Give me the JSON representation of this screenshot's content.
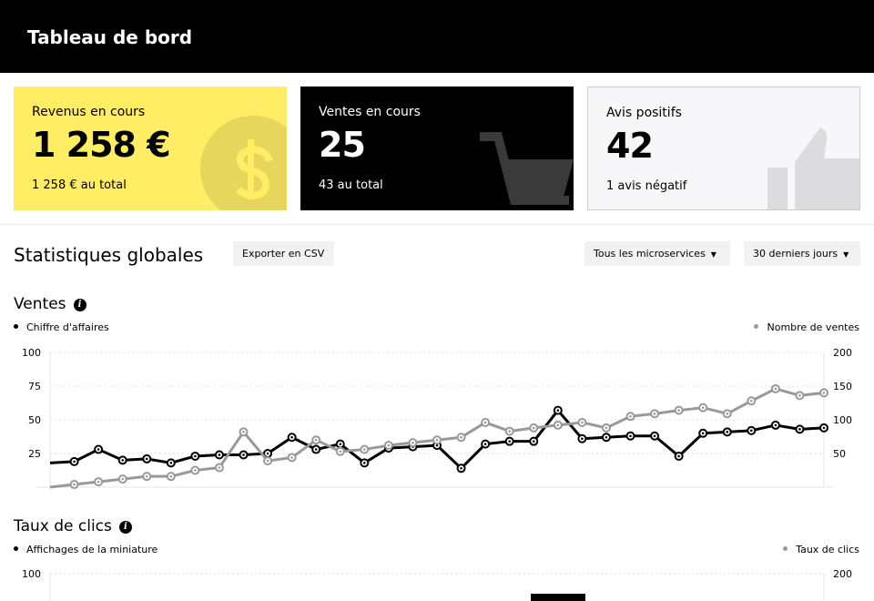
{
  "header": {
    "title": "Tableau de bord"
  },
  "cards": [
    {
      "label": "Revenus en cours",
      "value": "1 258 €",
      "sub": "1 258 € au total",
      "icon": "dollar-coin-icon",
      "color": "#ffed66"
    },
    {
      "label": "Ventes en cours",
      "value": "25",
      "sub": "43 au total",
      "icon": "shopping-cart-icon",
      "color": "#000000"
    },
    {
      "label": "Avis positifs",
      "value": "42",
      "sub": "1 avis négatif",
      "icon": "thumbs-up-icon",
      "color": "#f7f7f9"
    }
  ],
  "stats": {
    "title": "Statistiques globales",
    "export_label": "Exporter en CSV",
    "microservices_label": "Tous les microservices",
    "period_label": "30 derniers jours"
  },
  "chart_data": [
    {
      "type": "line",
      "title": "Ventes",
      "ylim_left": [
        0,
        100
      ],
      "ylim_right": [
        0,
        200
      ],
      "yticks_left": [
        "25",
        "50",
        "75",
        "100"
      ],
      "yticks_right": [
        "50",
        "100",
        "150",
        "200"
      ],
      "grid": true,
      "legend": {
        "left": "Chiffre d'affaires",
        "right": "Nombre de ventes"
      },
      "series": [
        {
          "name": "Chiffre d'affaires",
          "axis": "left",
          "color": "#000000",
          "values": [
            18,
            19,
            28,
            20,
            21,
            18,
            23,
            24,
            24,
            25,
            37,
            28,
            32,
            18,
            29,
            30,
            31,
            14,
            32,
            34,
            34,
            57,
            36,
            37,
            38,
            38,
            23,
            40,
            41,
            42,
            46,
            43,
            44
          ]
        },
        {
          "name": "Nombre de ventes",
          "axis": "right",
          "color": "#999999",
          "values": [
            0,
            4,
            8,
            12,
            16,
            16,
            25,
            29,
            82,
            39,
            44,
            70,
            53,
            56,
            62,
            66,
            70,
            74,
            96,
            83,
            88,
            92,
            96,
            88,
            105,
            109,
            114,
            118,
            109,
            128,
            146,
            136,
            140
          ]
        }
      ]
    },
    {
      "type": "line",
      "title": "Taux de clics",
      "ylim_left": [
        0,
        100
      ],
      "ylim_right": [
        0,
        200
      ],
      "yticks_left": [
        "100"
      ],
      "yticks_right": [
        "200"
      ],
      "grid": true,
      "legend": {
        "left": "Affichages de la miniature",
        "right": "Taux de clics"
      },
      "series": []
    }
  ]
}
